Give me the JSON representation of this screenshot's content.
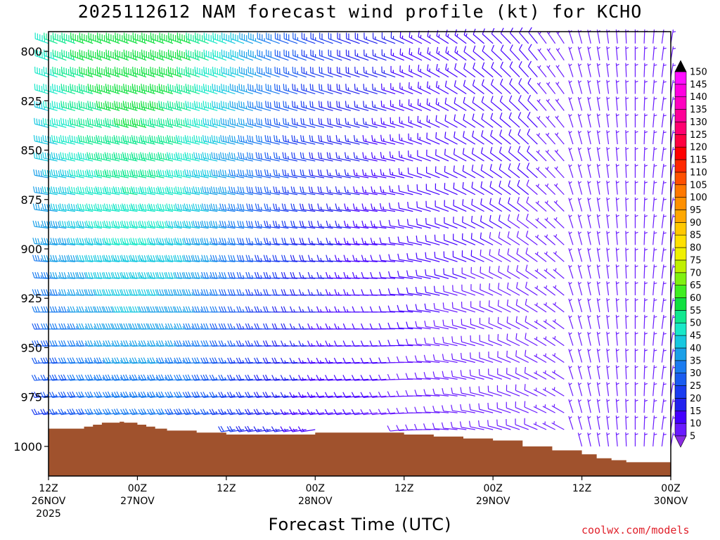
{
  "title": "2025112612 NAM forecast wind profile (kt) for KCHO",
  "credit": "coolwx.com/models",
  "chart_data": {
    "type": "wind_barb_profile",
    "title": "2025112612 NAM forecast wind profile (kt) for KCHO",
    "xlabel": "Forecast Time (UTC)",
    "ylabel": "",
    "x_range_hours": [
      0,
      84
    ],
    "ylim": [
      1015,
      790
    ],
    "y_ticks": [
      800,
      825,
      850,
      875,
      900,
      925,
      950,
      975,
      1000
    ],
    "x_ticks": [
      {
        "hour": 0,
        "line1": "12Z",
        "line2": "26NOV",
        "line3": "2025"
      },
      {
        "hour": 12,
        "line1": "00Z",
        "line2": "27NOV",
        "line3": ""
      },
      {
        "hour": 24,
        "line1": "12Z",
        "line2": "",
        "line3": ""
      },
      {
        "hour": 36,
        "line1": "00Z",
        "line2": "28NOV",
        "line3": ""
      },
      {
        "hour": 48,
        "line1": "12Z",
        "line2": "",
        "line3": ""
      },
      {
        "hour": 60,
        "line1": "00Z",
        "line2": "29NOV",
        "line3": ""
      },
      {
        "hour": 72,
        "line1": "12Z",
        "line2": "",
        "line3": ""
      },
      {
        "hour": 84,
        "line1": "00Z",
        "line2": "30NOV",
        "line3": ""
      }
    ],
    "time_step_hours": 1.2,
    "level_step_hpa": 8.5,
    "surface_color": "#a0522d",
    "surface_pressure": [
      [
        0,
        991
      ],
      [
        1.2,
        991
      ],
      [
        2.4,
        991
      ],
      [
        3.6,
        991
      ],
      [
        4.8,
        990
      ],
      [
        6,
        989
      ],
      [
        7.2,
        988
      ],
      [
        9.6,
        987.5
      ],
      [
        10.2,
        988
      ],
      [
        12,
        989
      ],
      [
        13.2,
        990
      ],
      [
        14.4,
        991
      ],
      [
        16,
        992
      ],
      [
        20,
        993
      ],
      [
        24,
        994
      ],
      [
        30,
        994
      ],
      [
        36,
        993
      ],
      [
        42,
        993
      ],
      [
        48,
        994
      ],
      [
        52,
        995
      ],
      [
        56,
        996
      ],
      [
        60,
        997
      ],
      [
        64,
        1000
      ],
      [
        68,
        1002
      ],
      [
        72,
        1004
      ],
      [
        74,
        1006
      ],
      [
        76,
        1007
      ],
      [
        78,
        1008
      ],
      [
        79.5,
        1008
      ],
      [
        84,
        1007
      ]
    ],
    "colorbar": {
      "levels": [
        5,
        10,
        15,
        20,
        25,
        30,
        35,
        40,
        45,
        50,
        55,
        60,
        65,
        70,
        75,
        80,
        85,
        90,
        95,
        100,
        105,
        110,
        115,
        120,
        125,
        130,
        135,
        140,
        145,
        150
      ],
      "colors": [
        "#8a2be2",
        "#6a1bff",
        "#4400ff",
        "#2222ee",
        "#1a3cf0",
        "#1a5cf0",
        "#1a7cf0",
        "#1aa0e8",
        "#16c8e0",
        "#18e8c8",
        "#10e890",
        "#10e040",
        "#40ee20",
        "#80f010",
        "#c0f000",
        "#f0f000",
        "#ffe000",
        "#ffc800",
        "#ffa800",
        "#ff9000",
        "#ff7800",
        "#ff5000",
        "#ff2800",
        "#ff0000",
        "#ff0040",
        "#ff0070",
        "#ff0098",
        "#ff00c0",
        "#ff00e0",
        "#ff10ff"
      ]
    },
    "wind_field_description": "barbs from the west at 25-50 kt aloft early, weakening to 5-15 kt and turning northerly late in the period"
  }
}
